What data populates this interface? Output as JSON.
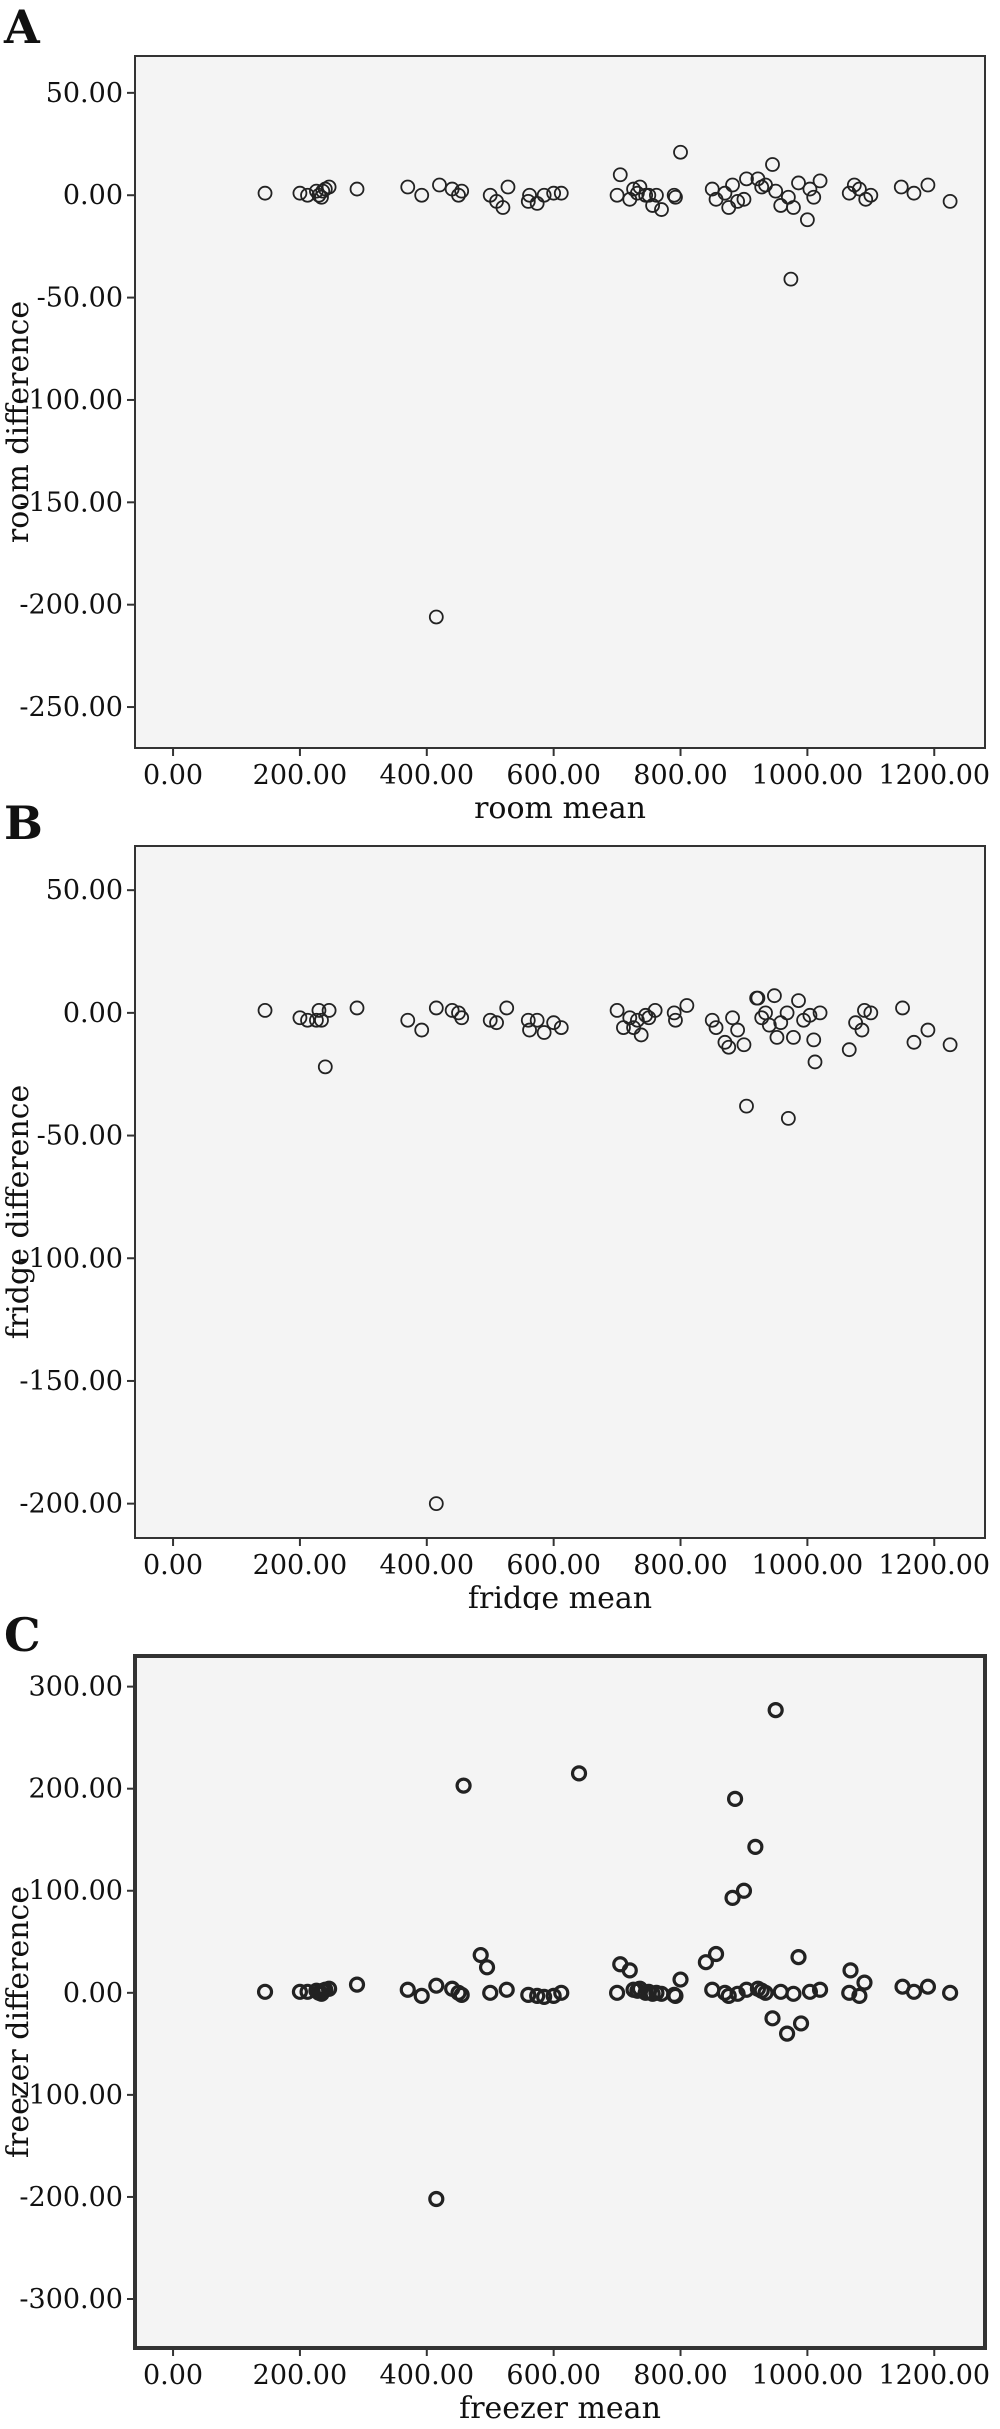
{
  "chart_data": [
    {
      "panel": "A",
      "type": "scatter",
      "xlabel": "room mean",
      "ylabel": "room difference",
      "xlim": [
        -60,
        1280
      ],
      "ylim": [
        -270,
        68
      ],
      "xticks": [
        "0.00",
        "200.00",
        "400.00",
        "600.00",
        "800.00",
        "1000.00",
        "1200.00"
      ],
      "yticks": [
        "50.00",
        "0.00",
        "-50.00",
        "-100.00",
        "-150.00",
        "-200.00",
        "-250.00"
      ],
      "xtick_values": [
        0,
        200,
        400,
        600,
        800,
        1000,
        1200
      ],
      "ytick_values": [
        50,
        0,
        -50,
        -100,
        -150,
        -200,
        -250
      ],
      "colors": {
        "background": "#f4f4f4",
        "marker": "#222222",
        "frame": "#333333"
      },
      "grid": false,
      "points": [
        [
          145,
          1
        ],
        [
          200,
          1
        ],
        [
          212,
          0
        ],
        [
          226,
          2
        ],
        [
          230,
          0
        ],
        [
          234,
          -1
        ],
        [
          236,
          2
        ],
        [
          240,
          3
        ],
        [
          246,
          4
        ],
        [
          290,
          3
        ],
        [
          370,
          4
        ],
        [
          392,
          0
        ],
        [
          420,
          5
        ],
        [
          440,
          3
        ],
        [
          450,
          0
        ],
        [
          455,
          2
        ],
        [
          500,
          0
        ],
        [
          510,
          -3
        ],
        [
          520,
          -6
        ],
        [
          528,
          4
        ],
        [
          560,
          -3
        ],
        [
          562,
          0
        ],
        [
          574,
          -4
        ],
        [
          585,
          0
        ],
        [
          600,
          1
        ],
        [
          612,
          1
        ],
        [
          700,
          0
        ],
        [
          705,
          10
        ],
        [
          720,
          -2
        ],
        [
          726,
          3
        ],
        [
          732,
          1
        ],
        [
          736,
          4
        ],
        [
          745,
          0
        ],
        [
          750,
          0
        ],
        [
          756,
          -5
        ],
        [
          762,
          0
        ],
        [
          770,
          -7
        ],
        [
          790,
          0
        ],
        [
          792,
          -1
        ],
        [
          800,
          21
        ],
        [
          850,
          3
        ],
        [
          856,
          -2
        ],
        [
          870,
          1
        ],
        [
          876,
          -6
        ],
        [
          882,
          5
        ],
        [
          890,
          -3
        ],
        [
          900,
          -2
        ],
        [
          904,
          8
        ],
        [
          922,
          8
        ],
        [
          928,
          4
        ],
        [
          934,
          5
        ],
        [
          945,
          15
        ],
        [
          950,
          2
        ],
        [
          958,
          -5
        ],
        [
          970,
          -1
        ],
        [
          974,
          -41
        ],
        [
          978,
          -6
        ],
        [
          986,
          6
        ],
        [
          1000,
          -12
        ],
        [
          1004,
          3
        ],
        [
          1010,
          -1
        ],
        [
          1020,
          7
        ],
        [
          1066,
          1
        ],
        [
          1074,
          5
        ],
        [
          1082,
          3
        ],
        [
          1092,
          -2
        ],
        [
          1100,
          0
        ],
        [
          1148,
          4
        ],
        [
          1168,
          1
        ],
        [
          1190,
          5
        ],
        [
          1225,
          -3
        ],
        [
          415,
          -206
        ]
      ]
    },
    {
      "panel": "B",
      "type": "scatter",
      "xlabel": "fridge mean",
      "ylabel": "fridge difference",
      "xlim": [
        -60,
        1280
      ],
      "ylim": [
        -214,
        68
      ],
      "xticks": [
        "0.00",
        "200.00",
        "400.00",
        "600.00",
        "800.00",
        "1000.00",
        "1200.00"
      ],
      "yticks": [
        "50.00",
        "0.00",
        "-50.00",
        "-100.00",
        "-150.00",
        "-200.00"
      ],
      "xtick_values": [
        0,
        200,
        400,
        600,
        800,
        1000,
        1200
      ],
      "ytick_values": [
        50,
        0,
        -50,
        -100,
        -150,
        -200
      ],
      "colors": {
        "background": "#f4f4f4",
        "marker": "#222222",
        "frame": "#333333"
      },
      "grid": false,
      "points": [
        [
          145,
          1
        ],
        [
          200,
          -2
        ],
        [
          212,
          -3
        ],
        [
          226,
          -3
        ],
        [
          230,
          1
        ],
        [
          234,
          -3
        ],
        [
          240,
          -22
        ],
        [
          246,
          1
        ],
        [
          290,
          2
        ],
        [
          370,
          -3
        ],
        [
          392,
          -7
        ],
        [
          415,
          2
        ],
        [
          440,
          1
        ],
        [
          450,
          0
        ],
        [
          455,
          -2
        ],
        [
          500,
          -3
        ],
        [
          510,
          -4
        ],
        [
          526,
          2
        ],
        [
          560,
          -3
        ],
        [
          562,
          -7
        ],
        [
          574,
          -3
        ],
        [
          585,
          -8
        ],
        [
          600,
          -4
        ],
        [
          612,
          -6
        ],
        [
          700,
          1
        ],
        [
          710,
          -6
        ],
        [
          720,
          -2
        ],
        [
          726,
          -6
        ],
        [
          732,
          -3
        ],
        [
          738,
          -9
        ],
        [
          745,
          -1
        ],
        [
          750,
          -2
        ],
        [
          760,
          1
        ],
        [
          790,
          0
        ],
        [
          792,
          -3
        ],
        [
          810,
          3
        ],
        [
          850,
          -3
        ],
        [
          856,
          -6
        ],
        [
          870,
          -12
        ],
        [
          876,
          -14
        ],
        [
          882,
          -2
        ],
        [
          890,
          -7
        ],
        [
          900,
          -13
        ],
        [
          904,
          -38
        ],
        [
          920,
          6
        ],
        [
          922,
          6
        ],
        [
          928,
          -2
        ],
        [
          934,
          0
        ],
        [
          940,
          -5
        ],
        [
          948,
          7
        ],
        [
          952,
          -10
        ],
        [
          958,
          -4
        ],
        [
          968,
          0
        ],
        [
          970,
          -43
        ],
        [
          978,
          -10
        ],
        [
          986,
          5
        ],
        [
          994,
          -3
        ],
        [
          1004,
          -1
        ],
        [
          1010,
          -11
        ],
        [
          1012,
          -20
        ],
        [
          1020,
          0
        ],
        [
          1066,
          -15
        ],
        [
          1076,
          -4
        ],
        [
          1086,
          -7
        ],
        [
          1090,
          1
        ],
        [
          1100,
          0
        ],
        [
          1150,
          2
        ],
        [
          1168,
          -12
        ],
        [
          1190,
          -7
        ],
        [
          1225,
          -13
        ],
        [
          415,
          -200
        ]
      ]
    },
    {
      "panel": "C",
      "type": "scatter",
      "xlabel": "freezer mean",
      "ylabel": "freezer difference",
      "xlim": [
        -60,
        1280
      ],
      "ylim": [
        -348,
        330
      ],
      "xticks": [
        "0.00",
        "200.00",
        "400.00",
        "600.00",
        "800.00",
        "1000.00",
        "1200.00"
      ],
      "yticks": [
        "300.00",
        "200.00",
        "100.00",
        "0.00",
        "-100.00",
        "-200.00",
        "-300.00"
      ],
      "xtick_values": [
        0,
        200,
        400,
        600,
        800,
        1000,
        1200
      ],
      "ytick_values": [
        300,
        200,
        100,
        0,
        -100,
        -200,
        -300
      ],
      "colors": {
        "background": "#f4f4f4",
        "marker": "#222222",
        "frame": "#333333"
      },
      "grid": false,
      "points": [
        [
          145,
          1
        ],
        [
          200,
          1
        ],
        [
          212,
          1
        ],
        [
          226,
          2
        ],
        [
          230,
          0
        ],
        [
          234,
          -1
        ],
        [
          236,
          2
        ],
        [
          240,
          3
        ],
        [
          246,
          4
        ],
        [
          290,
          8
        ],
        [
          370,
          3
        ],
        [
          392,
          -3
        ],
        [
          415,
          7
        ],
        [
          440,
          4
        ],
        [
          450,
          0
        ],
        [
          455,
          -2
        ],
        [
          458,
          203
        ],
        [
          485,
          37
        ],
        [
          495,
          25
        ],
        [
          500,
          0
        ],
        [
          526,
          3
        ],
        [
          560,
          -2
        ],
        [
          574,
          -3
        ],
        [
          585,
          -4
        ],
        [
          600,
          -3
        ],
        [
          612,
          0
        ],
        [
          640,
          215
        ],
        [
          700,
          0
        ],
        [
          705,
          28
        ],
        [
          720,
          22
        ],
        [
          726,
          3
        ],
        [
          732,
          2
        ],
        [
          736,
          4
        ],
        [
          745,
          0
        ],
        [
          750,
          1
        ],
        [
          756,
          -1
        ],
        [
          762,
          0
        ],
        [
          770,
          -1
        ],
        [
          790,
          -2
        ],
        [
          792,
          -3
        ],
        [
          800,
          13
        ],
        [
          840,
          30
        ],
        [
          850,
          3
        ],
        [
          856,
          38
        ],
        [
          870,
          0
        ],
        [
          876,
          -3
        ],
        [
          882,
          93
        ],
        [
          886,
          190
        ],
        [
          890,
          -1
        ],
        [
          900,
          100
        ],
        [
          904,
          3
        ],
        [
          918,
          143
        ],
        [
          922,
          4
        ],
        [
          928,
          2
        ],
        [
          934,
          0
        ],
        [
          945,
          -25
        ],
        [
          950,
          277
        ],
        [
          958,
          1
        ],
        [
          968,
          -40
        ],
        [
          978,
          -1
        ],
        [
          986,
          35
        ],
        [
          990,
          -30
        ],
        [
          1004,
          1
        ],
        [
          1020,
          3
        ],
        [
          1066,
          0
        ],
        [
          1068,
          22
        ],
        [
          1082,
          -3
        ],
        [
          1090,
          10
        ],
        [
          1150,
          6
        ],
        [
          1168,
          1
        ],
        [
          1190,
          6
        ],
        [
          1225,
          0
        ],
        [
          415,
          -202
        ]
      ]
    }
  ]
}
